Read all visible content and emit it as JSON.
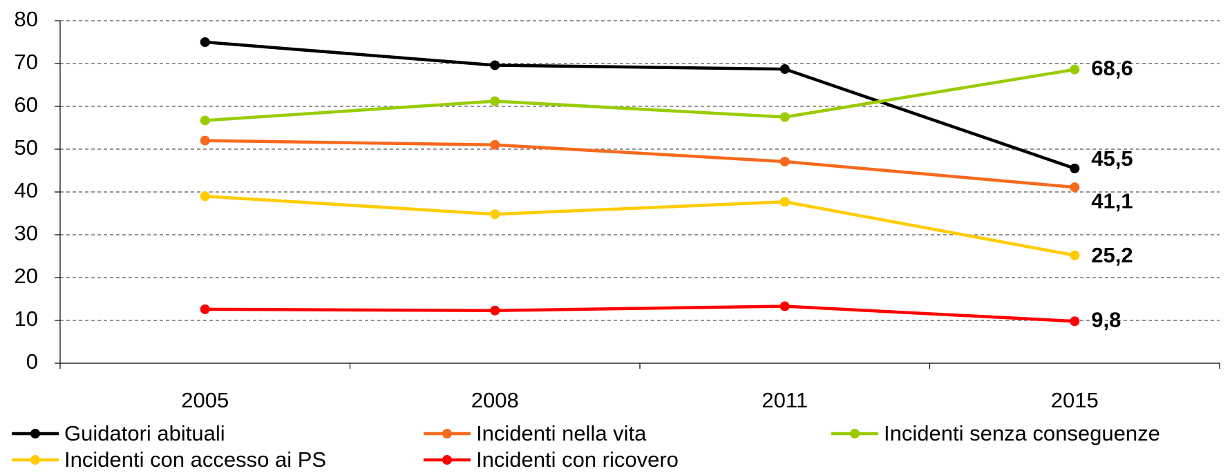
{
  "chart_data": {
    "type": "line",
    "categories": [
      "2005",
      "2008",
      "2011",
      "2015"
    ],
    "series": [
      {
        "name": "Guidatori abituali",
        "color": "#000000",
        "values": [
          75,
          69.6,
          68.7,
          45.5
        ],
        "value_labels": [
          null,
          null,
          null,
          "45,5"
        ]
      },
      {
        "name": "Incidenti nella vita",
        "color": "#f7691c",
        "values": [
          52,
          51,
          47.1,
          41.1
        ],
        "value_labels": [
          null,
          null,
          null,
          "41,1"
        ]
      },
      {
        "name": "Incidenti senza conseguenze",
        "color": "#99cc00",
        "values": [
          56.7,
          61.2,
          57.5,
          68.6
        ],
        "value_labels": [
          null,
          null,
          null,
          "68,6"
        ]
      },
      {
        "name": "Incidenti con accesso ai PS",
        "color": "#ffcc00",
        "values": [
          39,
          34.8,
          37.7,
          25.2
        ],
        "value_labels": [
          null,
          null,
          null,
          "25,2"
        ]
      },
      {
        "name": "Incidenti con ricovero",
        "color": "#ff0000",
        "values": [
          12.6,
          12.3,
          13.3,
          9.8
        ],
        "value_labels": [
          null,
          null,
          null,
          "9,8"
        ]
      }
    ],
    "ylim": [
      0,
      80
    ],
    "yticks": [
      0,
      10,
      20,
      30,
      40,
      50,
      60,
      70,
      80
    ],
    "grid": true,
    "legend": "bottom"
  }
}
